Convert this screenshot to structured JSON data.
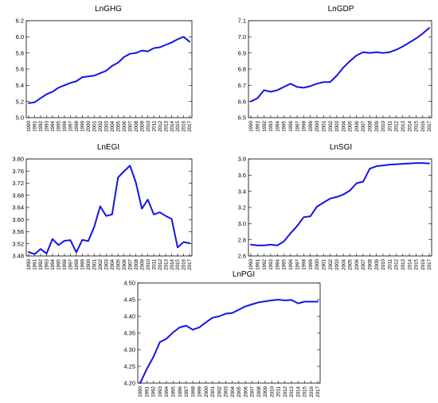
{
  "figure": {
    "panels": [
      {
        "id": "lnghg",
        "title": "LnGHG"
      },
      {
        "id": "lngdp",
        "title": "LnGDP"
      },
      {
        "id": "lnegi",
        "title": "LnEGI"
      },
      {
        "id": "lnsgi",
        "title": "LnSGI"
      },
      {
        "id": "lnpgi",
        "title": "LnPGI"
      }
    ],
    "line_color": "#1414e6"
  },
  "chart_data": [
    {
      "type": "line",
      "title": "LnGHG",
      "x": [
        1990,
        1991,
        1992,
        1993,
        1994,
        1995,
        1996,
        1997,
        1998,
        1999,
        2000,
        2001,
        2002,
        2003,
        2004,
        2005,
        2006,
        2007,
        2008,
        2009,
        2010,
        2011,
        2012,
        2013,
        2014,
        2015,
        2016,
        2017
      ],
      "x_tick_labels": [
        "1990",
        "1991",
        "1992",
        "1993",
        "1994",
        "1995",
        "1996",
        "1997",
        "1998",
        "1999",
        "2000",
        "2001",
        "2002",
        "2003",
        "2004",
        "2005",
        "2006",
        "2007",
        "2008",
        "2009",
        "2010",
        "2011",
        "2012",
        "2013",
        "2014",
        "2015",
        "2016",
        "2017"
      ],
      "y_ticks": [
        5.0,
        5.2,
        5.4,
        5.6,
        5.8,
        6.0,
        6.2
      ],
      "y_tick_labels": [
        "5.0",
        "5.2",
        "5.4",
        "5.6",
        "5.8",
        "6.0",
        "6.2"
      ],
      "ylim": [
        5.0,
        6.2
      ],
      "series": [
        {
          "values": [
            5.18,
            5.19,
            5.24,
            5.29,
            5.32,
            5.37,
            5.4,
            5.43,
            5.45,
            5.5,
            5.51,
            5.52,
            5.55,
            5.58,
            5.64,
            5.68,
            5.75,
            5.79,
            5.8,
            5.83,
            5.82,
            5.86,
            5.87,
            5.9,
            5.93,
            5.97,
            6.0,
            5.94
          ]
        }
      ]
    },
    {
      "type": "line",
      "title": "LnGDP",
      "x": [
        1990,
        1991,
        1992,
        1993,
        1994,
        1995,
        1996,
        1997,
        1998,
        1999,
        2000,
        2001,
        2002,
        2003,
        2004,
        2005,
        2006,
        2007,
        2008,
        2009,
        2010,
        2011,
        2012,
        2013,
        2014,
        2015,
        2016,
        2017
      ],
      "x_tick_labels": [
        "1990",
        "1991",
        "1992",
        "1993",
        "1994",
        "1995",
        "1996",
        "1997",
        "1998",
        "1999",
        "2000",
        "2001",
        "2002",
        "2003",
        "2004",
        "2005",
        "2006",
        "2007",
        "2008",
        "2009",
        "2010",
        "2011",
        "2012",
        "2013",
        "2014",
        "2015",
        "2016",
        "2017"
      ],
      "y_ticks": [
        6.5,
        6.6,
        6.7,
        6.8,
        6.9,
        7.0,
        7.1
      ],
      "y_tick_labels": [
        "6.5",
        "6.6",
        "6.7",
        "6.8",
        "6.9",
        "7.0",
        "7.1"
      ],
      "ylim": [
        6.5,
        7.1
      ],
      "series": [
        {
          "values": [
            6.6,
            6.62,
            6.67,
            6.66,
            6.67,
            6.69,
            6.71,
            6.69,
            6.685,
            6.695,
            6.71,
            6.72,
            6.72,
            6.76,
            6.81,
            6.85,
            6.885,
            6.905,
            6.9,
            6.905,
            6.9,
            6.905,
            6.92,
            6.94,
            6.965,
            6.99,
            7.02,
            7.055
          ]
        }
      ]
    },
    {
      "type": "line",
      "title": "LnEGI",
      "x": [
        1990,
        1991,
        1992,
        1993,
        1994,
        1995,
        1996,
        1997,
        1998,
        1999,
        2000,
        2001,
        2002,
        2003,
        2004,
        2005,
        2006,
        2007,
        2008,
        2009,
        2010,
        2011,
        2012,
        2013,
        2014,
        2015,
        2016,
        2017
      ],
      "x_tick_labels": [
        "1990",
        "1991",
        "1992",
        "1993",
        "1994",
        "1995",
        "1996",
        "1997",
        "1998",
        "1999",
        "2000",
        "2001",
        "2002",
        "2003",
        "2004",
        "2005",
        "2006",
        "2007",
        "2008",
        "2009",
        "2010",
        "2011",
        "2012",
        "2013",
        "2014",
        "2015",
        "2016",
        "2017"
      ],
      "y_ticks": [
        3.48,
        3.52,
        3.56,
        3.6,
        3.64,
        3.68,
        3.72,
        3.76,
        3.8
      ],
      "y_tick_labels": [
        "3.48",
        "3.52",
        "3.56",
        "3.60",
        "3.64",
        "3.68",
        "3.72",
        "3.76",
        "3.80"
      ],
      "ylim": [
        3.48,
        3.8
      ],
      "series": [
        {
          "values": [
            3.493,
            3.486,
            3.503,
            3.488,
            3.536,
            3.516,
            3.53,
            3.532,
            3.492,
            3.533,
            3.529,
            3.576,
            3.644,
            3.612,
            3.617,
            3.739,
            3.759,
            3.778,
            3.722,
            3.636,
            3.666,
            3.617,
            3.624,
            3.612,
            3.602,
            3.508,
            3.526,
            3.522
          ]
        }
      ]
    },
    {
      "type": "line",
      "title": "LnSGI",
      "x": [
        1990,
        1991,
        1992,
        1993,
        1994,
        1995,
        1996,
        1997,
        1998,
        1999,
        2000,
        2001,
        2002,
        2003,
        2004,
        2005,
        2006,
        2007,
        2008,
        2009,
        2010,
        2011,
        2012,
        2013,
        2014,
        2015,
        2016,
        2017
      ],
      "x_tick_labels": [
        "1990",
        "1991",
        "1992",
        "1993",
        "1994",
        "1995",
        "1996",
        "1997",
        "1998",
        "1999",
        "2000",
        "2001",
        "2002",
        "2003",
        "2004",
        "2005",
        "2006",
        "2007",
        "2008",
        "2009",
        "2010",
        "2011",
        "2012",
        "2013",
        "2014",
        "2015",
        "2016",
        "2017"
      ],
      "y_ticks": [
        2.6,
        2.8,
        3.0,
        3.2,
        3.4,
        3.6,
        3.8
      ],
      "y_tick_labels": [
        "2.6",
        "2.8",
        "3.0",
        "3.2",
        "3.4",
        "3.6",
        "3.8"
      ],
      "ylim": [
        2.6,
        3.8
      ],
      "series": [
        {
          "values": [
            2.74,
            2.73,
            2.73,
            2.74,
            2.73,
            2.78,
            2.88,
            2.97,
            3.08,
            3.09,
            3.21,
            3.26,
            3.31,
            3.33,
            3.36,
            3.41,
            3.5,
            3.52,
            3.68,
            3.71,
            3.72,
            3.73,
            3.735,
            3.74,
            3.745,
            3.75,
            3.75,
            3.745
          ]
        }
      ]
    },
    {
      "type": "line",
      "title": "LnPGI",
      "x": [
        1990,
        1991,
        1992,
        1993,
        1994,
        1995,
        1996,
        1997,
        1998,
        1999,
        2000,
        2001,
        2002,
        2003,
        2004,
        2005,
        2006,
        2007,
        2008,
        2009,
        2010,
        2011,
        2012,
        2013,
        2014,
        2015,
        2016,
        2017
      ],
      "x_tick_labels": [
        "1990",
        "1991",
        "1992",
        "1993",
        "1994",
        "1995",
        "1996",
        "1997",
        "1998",
        "1999",
        "2000",
        "2001",
        "2002",
        "2003",
        "2004",
        "2005",
        "2006",
        "2007",
        "2008",
        "2009",
        "2010",
        "2011",
        "2012",
        "2013",
        "2014",
        "2015",
        "2016",
        "2017"
      ],
      "y_ticks": [
        4.2,
        4.25,
        4.3,
        4.35,
        4.4,
        4.45,
        4.5
      ],
      "y_tick_labels": [
        "4.20",
        "4.25",
        "4.30",
        "4.35",
        "4.40",
        "4.45",
        "4.50"
      ],
      "ylim": [
        4.2,
        4.5
      ],
      "series": [
        {
          "values": [
            4.2,
            4.242,
            4.278,
            4.323,
            4.333,
            4.352,
            4.367,
            4.372,
            4.36,
            4.367,
            4.382,
            4.396,
            4.4,
            4.408,
            4.41,
            4.42,
            4.43,
            4.436,
            4.442,
            4.445,
            4.448,
            4.45,
            4.448,
            4.449,
            4.439,
            4.444,
            4.444,
            4.444
          ]
        }
      ]
    }
  ]
}
